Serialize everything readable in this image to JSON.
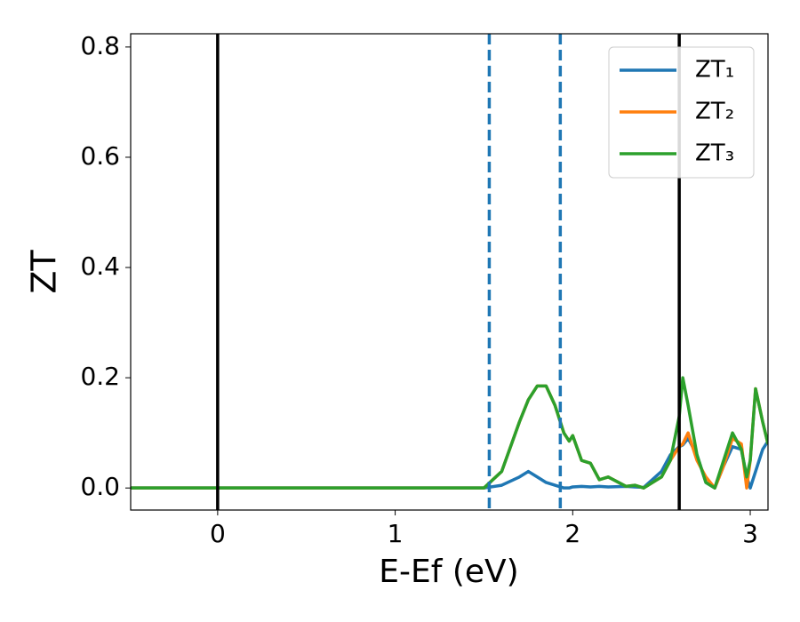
{
  "chart_data": {
    "type": "line",
    "x_label": "E-Ef (eV)",
    "y_label": "ZT",
    "x": [
      -0.49,
      1.5,
      1.6,
      1.7,
      1.75,
      1.8,
      1.85,
      1.9,
      1.95,
      1.98,
      2.0,
      2.05,
      2.1,
      2.15,
      2.2,
      2.3,
      2.35,
      2.4,
      2.5,
      2.55,
      2.6,
      2.62,
      2.65,
      2.7,
      2.75,
      2.8,
      2.85,
      2.9,
      2.95,
      2.98,
      3.0,
      3.03,
      3.07,
      3.1
    ],
    "series": [
      {
        "name": "ZT₁",
        "color": "#1f77b4",
        "values": [
          0,
          0,
          0.005,
          0.02,
          0.03,
          0.02,
          0.01,
          0.005,
          0,
          0,
          0.002,
          0.003,
          0.002,
          0.003,
          0.002,
          0.003,
          0.002,
          0.001,
          0.03,
          0.06,
          0.075,
          0.078,
          0.09,
          0.06,
          0.01,
          0,
          0.04,
          0.075,
          0.07,
          0.02,
          0,
          0.03,
          0.07,
          0.085
        ]
      },
      {
        "name": "ZT₂",
        "color": "#ff7f0e",
        "values": [
          0,
          0,
          0.03,
          0.12,
          0.16,
          0.185,
          0.185,
          0.15,
          0.1,
          0.085,
          0.095,
          0.05,
          0.045,
          0.015,
          0.02,
          0.003,
          0.005,
          0,
          0.02,
          0.05,
          0.075,
          0.08,
          0.1,
          0.05,
          0.02,
          0,
          0.04,
          0.09,
          0.08,
          0,
          0.05,
          0.18,
          0.12,
          0.08
        ]
      },
      {
        "name": "ZT₃",
        "color": "#2ca02c",
        "values": [
          0,
          0,
          0.03,
          0.12,
          0.16,
          0.185,
          0.185,
          0.15,
          0.1,
          0.085,
          0.095,
          0.05,
          0.045,
          0.015,
          0.02,
          0.003,
          0.005,
          0,
          0.02,
          0.05,
          0.13,
          0.2,
          0.15,
          0.06,
          0.01,
          0,
          0.05,
          0.1,
          0.07,
          0.02,
          0.05,
          0.18,
          0.12,
          0.08
        ]
      }
    ],
    "vlines": [
      {
        "x": 0,
        "color": "#000000",
        "dashed": false
      },
      {
        "x": 2.6,
        "color": "#000000",
        "dashed": false
      },
      {
        "x": 1.53,
        "color": "#1f77b4",
        "dashed": true
      },
      {
        "x": 1.93,
        "color": "#1f77b4",
        "dashed": true
      }
    ],
    "xlim": [
      -0.49,
      3.1
    ],
    "ylim": [
      -0.04,
      0.824
    ],
    "xticks": [
      0,
      1,
      2,
      3
    ],
    "yticks": [
      {
        "value": 0,
        "label": "0.0"
      },
      0.2,
      0.4,
      0.6,
      0.8
    ],
    "grid": false,
    "legend": "upper right"
  }
}
